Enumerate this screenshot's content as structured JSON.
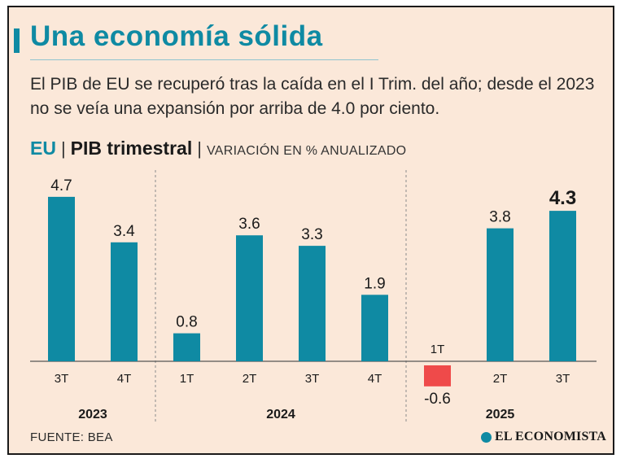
{
  "header": {
    "title": "Una economía sólida",
    "subtitle": "El PIB de EU se recuperó tras la caída en el I Trim. del año; desde el 2023 no se veía una expansión por arriba de 4.0 por ciento."
  },
  "chart_header": {
    "country": "EU",
    "separator": "|",
    "metric": "PIB trimestral",
    "unit": "VARIACIÓN EN % ANUALIZADO"
  },
  "chart_data": {
    "type": "bar",
    "title": "PIB trimestral",
    "ylabel": "Variación en % anualizado",
    "categories": [
      "3T",
      "4T",
      "1T",
      "2T",
      "3T",
      "4T",
      "1T",
      "2T",
      "3T"
    ],
    "groups": [
      {
        "label": "2023",
        "start": 0,
        "end": 1
      },
      {
        "label": "2024",
        "start": 2,
        "end": 5
      },
      {
        "label": "2025",
        "start": 6,
        "end": 8
      }
    ],
    "values": [
      4.7,
      3.4,
      0.8,
      3.6,
      3.3,
      1.9,
      -0.6,
      3.8,
      4.3
    ],
    "labels": [
      "4.7",
      "3.4",
      "0.8",
      "3.6",
      "3.3",
      "1.9",
      "-0.6",
      "3.8",
      "4.3"
    ],
    "highlight_index": 8,
    "colors": {
      "positive": "#0f8aa3",
      "negative": "#ef4a4a"
    }
  },
  "footer": {
    "source": "FUENTE: BEA",
    "brand": "EL ECONOMISTA"
  }
}
